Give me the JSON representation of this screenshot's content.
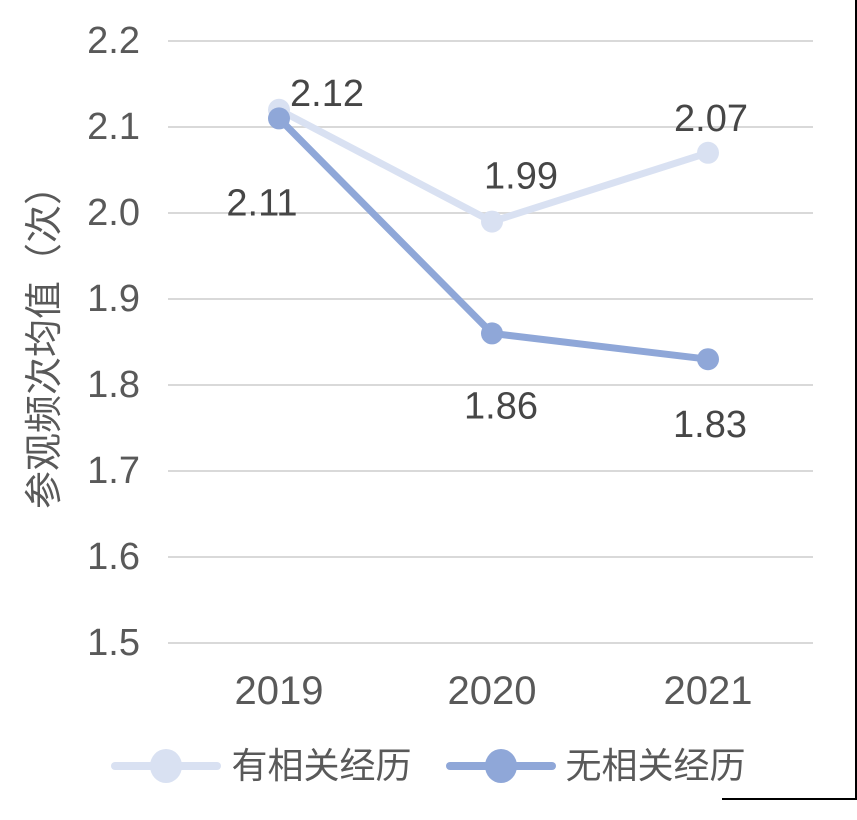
{
  "chart_data": {
    "type": "line",
    "title": "",
    "xlabel": "",
    "ylabel": "参观频次均值（次）",
    "categories": [
      "2019",
      "2020",
      "2021"
    ],
    "series": [
      {
        "name": "有相关经历",
        "values": [
          2.12,
          1.99,
          2.07
        ],
        "labels": [
          "2.12",
          "1.99",
          "2.07"
        ],
        "color": "#D9E1F2",
        "label_offsets": [
          {
            "dx": 48,
            "dy": -16
          },
          {
            "dx": 29,
            "dy": -45
          },
          {
            "dx": 3,
            "dy": -34
          }
        ]
      },
      {
        "name": "无相关经历",
        "values": [
          2.11,
          1.86,
          1.83
        ],
        "labels": [
          "2.11",
          "1.86",
          "1.83"
        ],
        "color": "#8FA7D8",
        "label_offsets": [
          {
            "dx": -17,
            "dy": 85
          },
          {
            "dx": 9,
            "dy": 73
          },
          {
            "dx": 2,
            "dy": 66
          }
        ]
      }
    ],
    "y_ticks": [
      "2.2",
      "2.1",
      "2.0",
      "1.9",
      "1.8",
      "1.7",
      "1.6",
      "1.5"
    ],
    "ylim": [
      1.5,
      2.2
    ],
    "grid": true,
    "legend_position": "bottom",
    "colors": {
      "gridline": "#D9D9D9",
      "axis_text": "#595959",
      "data_label": "#464646",
      "window_border": "#000000"
    }
  }
}
